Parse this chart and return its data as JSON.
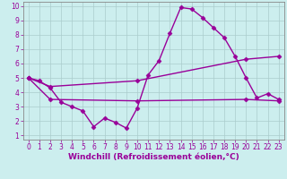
{
  "xlabel": "Windchill (Refroidissement éolien,°C)",
  "bg_color": "#cceeee",
  "line_color": "#990099",
  "xlim": [
    -0.5,
    23.5
  ],
  "ylim": [
    0.7,
    10.3
  ],
  "xticks": [
    0,
    1,
    2,
    3,
    4,
    5,
    6,
    7,
    8,
    9,
    10,
    11,
    12,
    13,
    14,
    15,
    16,
    17,
    18,
    19,
    20,
    21,
    22,
    23
  ],
  "yticks": [
    1,
    2,
    3,
    4,
    5,
    6,
    7,
    8,
    9,
    10
  ],
  "lines": [
    {
      "x": [
        0,
        1,
        2,
        3,
        4,
        5,
        6,
        7,
        8,
        9,
        10,
        11,
        12,
        13,
        14,
        15,
        16,
        17,
        18,
        19,
        20,
        21,
        22,
        23
      ],
      "y": [
        5.0,
        4.8,
        4.3,
        3.3,
        3.0,
        2.7,
        1.6,
        2.2,
        1.9,
        1.5,
        2.9,
        5.2,
        6.2,
        8.1,
        9.9,
        9.8,
        9.2,
        8.5,
        7.8,
        6.5,
        5.0,
        3.6,
        3.9,
        3.5
      ]
    },
    {
      "x": [
        0,
        2,
        10,
        20,
        23
      ],
      "y": [
        5.0,
        4.4,
        4.8,
        6.3,
        6.5
      ]
    },
    {
      "x": [
        0,
        2,
        10,
        20,
        23
      ],
      "y": [
        5.0,
        3.5,
        3.4,
        3.5,
        3.4
      ]
    }
  ],
  "marker": "D",
  "markersize": 2.5,
  "linewidth": 1.0,
  "xlabel_fontsize": 6.5,
  "tick_fontsize": 5.5,
  "grid_color": "#aacccc",
  "spine_color": "#888888"
}
